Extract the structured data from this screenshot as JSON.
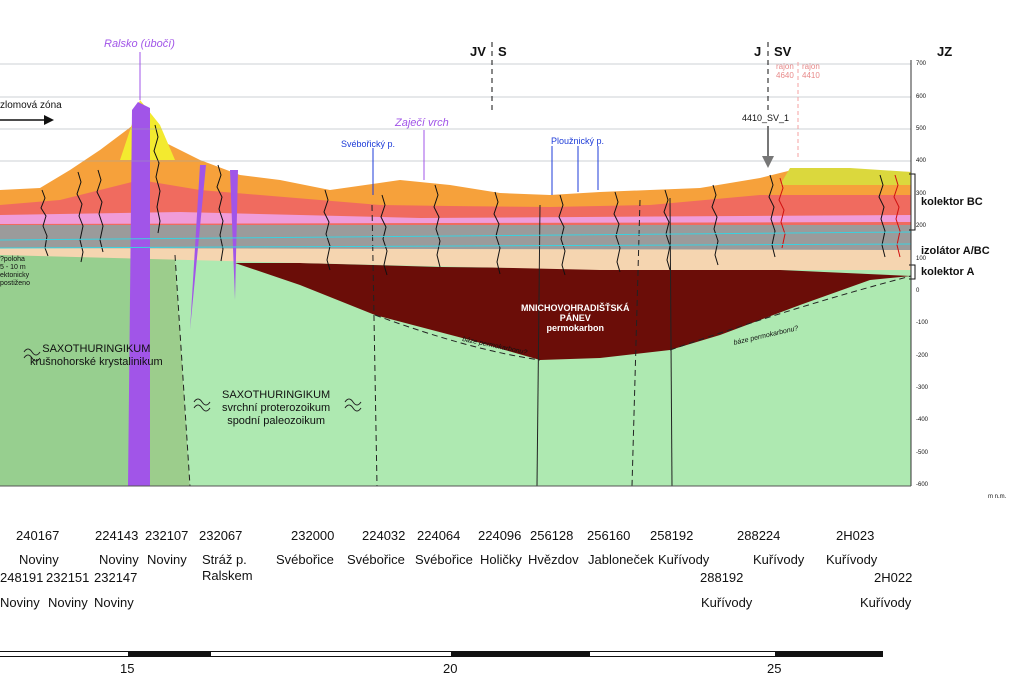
{
  "orientation": {
    "jv": "JV",
    "s": "S",
    "j": "J",
    "sv": "SV",
    "jz": "JZ"
  },
  "peaks": {
    "ralsko": "Ralsko (úbočí)",
    "zajeci": "Zaječí vrch"
  },
  "streams": {
    "svebor": "Svébořický p.",
    "plouz": "Ploužnický p."
  },
  "rajon": {
    "a1": "rajon",
    "a2": "4640",
    "b1": "rajon",
    "b2": "4410"
  },
  "well_label": "4410_SV_1",
  "fault_zone": "zlomová zóna",
  "collectors": {
    "bc": "kolektor BC",
    "izol": "izolátor A/BC",
    "a": "kolektor A"
  },
  "units": {
    "saxo1_title": "SAXOTHURINGIKUM",
    "saxo1_sub": "krušnohorské krystalinikum",
    "saxo2_title": "SAXOTHURINGIKUM",
    "saxo2_sub1": "svrchní proterozoikum",
    "saxo2_sub2": "spodní paleozoikum",
    "panev1": "MNICHOVOHRADIŠŤSKÁ",
    "panev2": "PÁNEV",
    "panev3": "permokarbon",
    "baze1": "báze permokarbonu?",
    "baze2": "báze permokarbonu?",
    "left_note1": "?poloha",
    "left_note2": "5 - 10 m",
    "left_note3": "ektonicky",
    "left_note4": "postiženo"
  },
  "elevation_axis": {
    "unit": "m n.m.",
    "ticks": [
      "700",
      "600",
      "500",
      "400",
      "300",
      "200",
      "100",
      "0",
      "-100",
      "-200",
      "-300",
      "-400",
      "-500",
      "-600"
    ]
  },
  "boreholes_top": [
    "240167",
    "224143",
    "232107",
    "232067",
    "232000",
    "224032",
    "224064",
    "224096",
    "256128",
    "256160",
    "258192",
    "288224",
    "2H023"
  ],
  "places_top": [
    "Noviny",
    "Noviny",
    "Noviny",
    "Stráž p.",
    "Svébořice",
    "Svébořice",
    "Svébořice",
    "Holičky",
    "Hvězdov",
    "Jabloneček",
    "Kuřívody",
    "Kuřívody",
    "Kuřívody"
  ],
  "place_232067_line2": "Ralskem",
  "boreholes_bottom": [
    "248191",
    "232151",
    "232147",
    "288192",
    "2H022"
  ],
  "places_bottom": [
    "Noviny",
    "Noviny",
    "Noviny",
    "Kuřívody",
    "Kuřívody"
  ],
  "scale_bar": {
    "labels": [
      "15",
      "20",
      "25"
    ]
  }
}
